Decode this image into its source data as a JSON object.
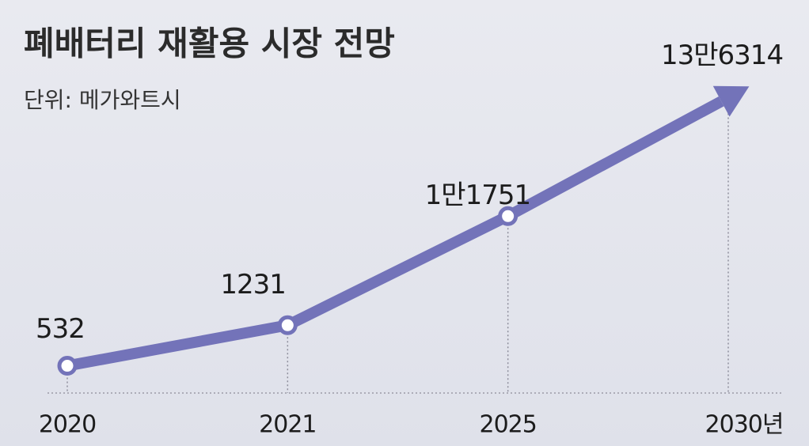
{
  "chart_data": {
    "type": "line",
    "title": "폐배터리 재활용 시장 전망",
    "subtitle": "단위: 메가와트시",
    "categories": [
      "2020",
      "2021",
      "2025",
      "2030년"
    ],
    "values": [
      532,
      1231,
      11751,
      136314
    ],
    "value_labels": [
      "532",
      "1231",
      "1만1751",
      "13만6314"
    ],
    "color": "#7373b9",
    "log_scale": true,
    "ylim": [
      400,
      200000
    ]
  }
}
